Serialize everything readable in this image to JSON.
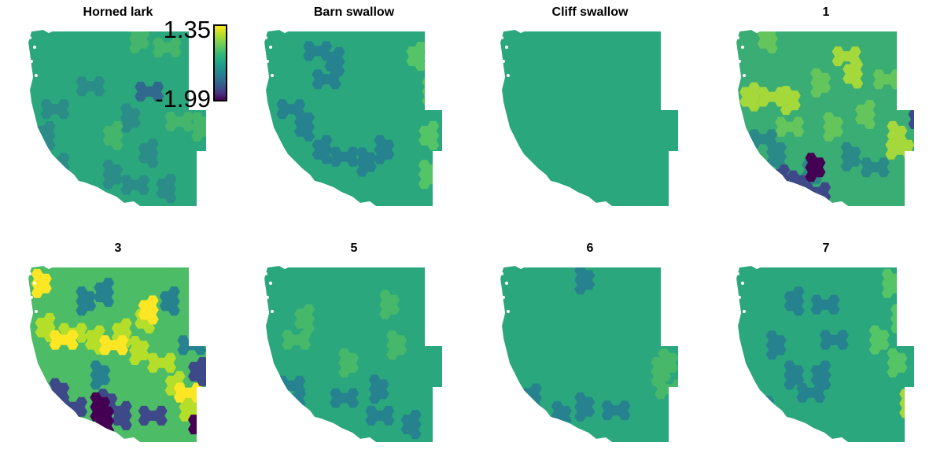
{
  "legend": {
    "max_label": "1.35",
    "min_label": "-1.99",
    "colormap": "viridis",
    "range": [
      -1.99,
      1.35
    ]
  },
  "panels": [
    {
      "title": "Horned lark",
      "base_color": "#2aa77d",
      "patches": [
        {
          "color": "#2b8c88",
          "spots": [
            [
              0.15,
              0.45
            ],
            [
              0.12,
              0.6
            ],
            [
              0.2,
              0.78
            ],
            [
              0.35,
              0.32
            ],
            [
              0.55,
              0.5
            ],
            [
              0.45,
              0.82
            ],
            [
              0.6,
              0.88
            ],
            [
              0.8,
              0.9
            ],
            [
              0.7,
              0.7
            ]
          ]
        },
        {
          "color": "#44b56b",
          "spots": [
            [
              0.78,
              0.1
            ],
            [
              0.6,
              0.05
            ],
            [
              0.85,
              0.52
            ],
            [
              0.95,
              0.55
            ],
            [
              0.5,
              0.6
            ]
          ]
        },
        {
          "color": "#31688e",
          "spots": [
            [
              0.68,
              0.35
            ]
          ]
        }
      ]
    },
    {
      "title": "Barn swallow",
      "base_color": "#2aa77d",
      "patches": [
        {
          "color": "#26828e",
          "spots": [
            [
              0.3,
              0.12
            ],
            [
              0.42,
              0.18
            ],
            [
              0.35,
              0.28
            ],
            [
              0.45,
              0.72
            ],
            [
              0.55,
              0.75
            ],
            [
              0.65,
              0.68
            ],
            [
              0.35,
              0.68
            ],
            [
              0.25,
              0.55
            ],
            [
              0.15,
              0.45
            ]
          ]
        },
        {
          "color": "#55c466",
          "spots": [
            [
              0.88,
              0.15
            ],
            [
              0.92,
              0.35
            ],
            [
              0.95,
              0.6
            ],
            [
              0.9,
              0.82
            ]
          ]
        }
      ]
    },
    {
      "title": "Cliff swallow",
      "base_color": "#2aa77d",
      "patches": []
    },
    {
      "title": "1",
      "base_color": "#3aad74",
      "patches": [
        {
          "color": "#a5d83a",
          "spots": [
            [
              0.1,
              0.38
            ],
            [
              0.2,
              0.38
            ],
            [
              0.28,
              0.4
            ],
            [
              0.62,
              0.15
            ],
            [
              0.68,
              0.25
            ],
            [
              0.88,
              0.6
            ],
            [
              0.92,
              0.68
            ]
          ]
        },
        {
          "color": "#64c55c",
          "spots": [
            [
              0.2,
              0.05
            ],
            [
              0.45,
              0.3
            ],
            [
              0.52,
              0.55
            ],
            [
              0.75,
              0.48
            ],
            [
              0.3,
              0.55
            ],
            [
              0.85,
              0.28
            ]
          ]
        },
        {
          "color": "#2a8a88",
          "spots": [
            [
              0.15,
              0.62
            ],
            [
              0.25,
              0.72
            ],
            [
              0.62,
              0.72
            ],
            [
              0.78,
              0.78
            ],
            [
              0.4,
              0.82
            ]
          ]
        },
        {
          "color": "#3e4989",
          "spots": [
            [
              0.22,
              0.82
            ],
            [
              0.32,
              0.88
            ],
            [
              0.45,
              0.92
            ],
            [
              1.0,
              0.48
            ]
          ]
        },
        {
          "color": "#440154",
          "spots": [
            [
              0.42,
              0.78
            ]
          ]
        }
      ]
    },
    {
      "title": "3",
      "base_color": "#4cbc66",
      "patches": [
        {
          "color": "#b5de2b",
          "spots": [
            [
              0.12,
              0.35
            ],
            [
              0.25,
              0.38
            ],
            [
              0.4,
              0.42
            ],
            [
              0.55,
              0.38
            ],
            [
              0.68,
              0.3
            ],
            [
              0.6,
              0.48
            ],
            [
              0.75,
              0.55
            ],
            [
              0.85,
              0.68
            ],
            [
              0.88,
              0.8
            ]
          ]
        },
        {
          "color": "#fde725",
          "spots": [
            [
              0.2,
              0.42
            ],
            [
              0.48,
              0.45
            ],
            [
              0.7,
              0.25
            ],
            [
              0.9,
              0.72
            ],
            [
              0.05,
              0.1
            ]
          ]
        },
        {
          "color": "#26828e",
          "spots": [
            [
              0.3,
              0.2
            ],
            [
              0.45,
              0.15
            ],
            [
              0.82,
              0.2
            ],
            [
              0.92,
              0.45
            ],
            [
              0.38,
              0.62
            ]
          ]
        },
        {
          "color": "#3e4989",
          "spots": [
            [
              0.15,
              0.72
            ],
            [
              0.25,
              0.8
            ],
            [
              0.42,
              0.78
            ],
            [
              0.55,
              0.85
            ],
            [
              0.7,
              0.85
            ],
            [
              0.98,
              0.6
            ]
          ]
        },
        {
          "color": "#440154",
          "spots": [
            [
              0.45,
              0.88
            ],
            [
              0.38,
              0.8
            ],
            [
              0.98,
              0.9
            ]
          ]
        }
      ]
    },
    {
      "title": "5",
      "base_color": "#2aa77d",
      "patches": [
        {
          "color": "#47b76a",
          "spots": [
            [
              0.25,
              0.3
            ],
            [
              0.18,
              0.42
            ],
            [
              0.68,
              0.22
            ],
            [
              0.72,
              0.45
            ],
            [
              0.45,
              0.55
            ]
          ]
        },
        {
          "color": "#26828e",
          "spots": [
            [
              0.15,
              0.68
            ],
            [
              0.2,
              0.78
            ],
            [
              0.45,
              0.75
            ],
            [
              0.62,
              0.7
            ],
            [
              0.65,
              0.85
            ],
            [
              0.85,
              0.9
            ]
          ]
        }
      ]
    },
    {
      "title": "6",
      "base_color": "#2aa77d",
      "patches": [
        {
          "color": "#26828e",
          "spots": [
            [
              0.45,
              0.08
            ],
            [
              0.2,
              0.75
            ],
            [
              0.32,
              0.85
            ],
            [
              0.45,
              0.8
            ],
            [
              0.65,
              0.82
            ]
          ]
        },
        {
          "color": "#47b76a",
          "spots": [
            [
              0.92,
              0.55
            ],
            [
              0.88,
              0.6
            ],
            [
              0.95,
              0.7
            ]
          ]
        }
      ]
    },
    {
      "title": "7",
      "base_color": "#2aa77d",
      "patches": [
        {
          "color": "#26828e",
          "spots": [
            [
              0.35,
              0.2
            ],
            [
              0.5,
              0.22
            ],
            [
              0.2,
              0.45
            ],
            [
              0.3,
              0.62
            ],
            [
              0.42,
              0.72
            ],
            [
              0.5,
              0.62
            ],
            [
              0.55,
              0.42
            ],
            [
              0.18,
              0.82
            ]
          ]
        },
        {
          "color": "#55c466",
          "spots": [
            [
              0.85,
              0.1
            ],
            [
              0.9,
              0.3
            ],
            [
              0.88,
              0.55
            ],
            [
              0.78,
              0.42
            ]
          ]
        },
        {
          "color": "#a5d83a",
          "spots": [
            [
              0.95,
              0.78
            ]
          ]
        }
      ]
    }
  ]
}
